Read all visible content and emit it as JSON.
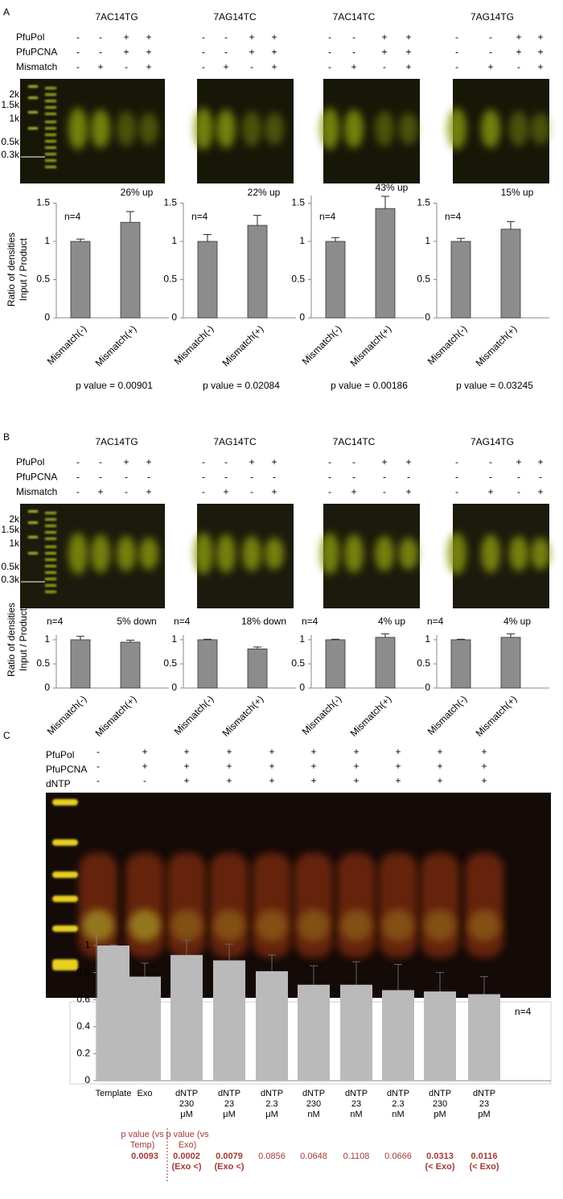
{
  "panels": [
    {
      "label": "A",
      "gel_titles": [
        "7AC14TG",
        "7AG14TC",
        "7AC14TC",
        "7AG14TG"
      ],
      "row_labels": [
        "PfuPol",
        "PfuPCNA",
        "Mismatch"
      ],
      "lanes": [
        [
          "-",
          "-",
          "+",
          "+"
        ],
        [
          "-",
          "-",
          "+",
          "+"
        ],
        [
          "-",
          "+",
          "-",
          "+"
        ]
      ],
      "ladder_labels": [
        "2k",
        "1.5k",
        "1k",
        "0.5k",
        "0.3k"
      ]
    },
    {
      "label": "B",
      "gel_titles": [
        "7AC14TG",
        "7AG14TC",
        "7AC14TC",
        "7AG14TG"
      ],
      "row_labels": [
        "PfuPol",
        "PfuPCNA",
        "Mismatch"
      ],
      "lanes": [
        [
          "-",
          "-",
          "+",
          "+"
        ],
        [
          "-",
          "-",
          "-",
          "-"
        ],
        [
          "-",
          "+",
          "-",
          "+"
        ]
      ],
      "ladder_labels": [
        "2k",
        "1.5k",
        "1k",
        "0.5k",
        "0.3k"
      ]
    },
    {
      "label": "C",
      "row_labels": [
        "PfuPol",
        "PfuPCNA",
        "dNTP"
      ],
      "lanes": [
        [
          "-",
          "+",
          "+",
          "+",
          "+",
          "+",
          "+",
          "+",
          "+",
          "+"
        ],
        [
          "-",
          "+",
          "+",
          "+",
          "+",
          "+",
          "+",
          "+",
          "+",
          "+"
        ],
        [
          "-",
          "-",
          "+",
          "+",
          "+",
          "+",
          "+",
          "+",
          "+",
          "+"
        ]
      ]
    }
  ],
  "chart_data": [
    {
      "type": "bar",
      "y_label": "Ratio of densities",
      "y_label_sub": "Input / Product",
      "categories": [
        "Mismatch(-)",
        "Mismatch(+)"
      ],
      "values": [
        1.0,
        1.25
      ],
      "errors": [
        0.03,
        0.14
      ],
      "color": "#8c8c8c",
      "ylim": [
        0,
        1.5
      ],
      "yticks": [
        0,
        0.5,
        1,
        1.5
      ],
      "n_label": "n=4",
      "change_label": "26% up",
      "p_value": "p value = 0.00901"
    },
    {
      "type": "bar",
      "categories": [
        "Mismatch(-)",
        "Mismatch(+)"
      ],
      "values": [
        1.0,
        1.21
      ],
      "errors": [
        0.09,
        0.13
      ],
      "color": "#8c8c8c",
      "ylim": [
        0,
        1.5
      ],
      "yticks": [
        0,
        0.5,
        1,
        1.5
      ],
      "n_label": "n=4",
      "change_label": "22% up",
      "p_value": "p value = 0.02084"
    },
    {
      "type": "bar",
      "categories": [
        "Mismatch(-)",
        "Mismatch(+)"
      ],
      "values": [
        1.0,
        1.43
      ],
      "errors": [
        0.05,
        0.16
      ],
      "color": "#8c8c8c",
      "ylim": [
        0,
        1.6
      ],
      "yticks": [
        0,
        0.5,
        1,
        1.5
      ],
      "n_label": "n=4",
      "change_label": "43% up",
      "p_value": "p value = 0.00186"
    },
    {
      "type": "bar",
      "categories": [
        "Mismatch(-)",
        "Mismatch(+)"
      ],
      "values": [
        1.0,
        1.16
      ],
      "errors": [
        0.04,
        0.1
      ],
      "color": "#8c8c8c",
      "ylim": [
        0,
        1.5
      ],
      "yticks": [
        0,
        0.5,
        1,
        1.5
      ],
      "n_label": "n=4",
      "change_label": "15% up",
      "p_value": "p value = 0.03245"
    },
    {
      "type": "bar",
      "y_label": "Ratio of densities",
      "y_label_sub": "Input / Product",
      "categories": [
        "Mismatch(-)",
        "Mismatch(+)"
      ],
      "values": [
        1.0,
        0.95
      ],
      "errors": [
        0.07,
        0.04
      ],
      "color": "#8c8c8c",
      "ylim": [
        0,
        1.1
      ],
      "yticks": [
        0,
        0.5,
        1
      ],
      "n_label": "n=4",
      "change_label": "5% down"
    },
    {
      "type": "bar",
      "categories": [
        "Mismatch(-)",
        "Mismatch(+)"
      ],
      "values": [
        1.0,
        0.81
      ],
      "errors": [
        0.01,
        0.04
      ],
      "color": "#8c8c8c",
      "ylim": [
        0,
        1.1
      ],
      "yticks": [
        0,
        0.5,
        1
      ],
      "n_label": "n=4",
      "change_label": "18% down"
    },
    {
      "type": "bar",
      "categories": [
        "Mismatch(-)",
        "Mismatch(+)"
      ],
      "values": [
        1.0,
        1.05
      ],
      "errors": [
        0.01,
        0.07
      ],
      "color": "#8c8c8c",
      "ylim": [
        0,
        1.1
      ],
      "yticks": [
        0,
        0.5,
        1
      ],
      "n_label": "n=4",
      "change_label": "4% up"
    },
    {
      "type": "bar",
      "categories": [
        "Mismatch(-)",
        "Mismatch(+)"
      ],
      "values": [
        1.0,
        1.05
      ],
      "errors": [
        0.01,
        0.07
      ],
      "color": "#8c8c8c",
      "ylim": [
        0,
        1.1
      ],
      "yticks": [
        0,
        0.5,
        1
      ],
      "n_label": "n=4",
      "change_label": "4% up"
    },
    {
      "type": "bar",
      "categories": [
        "Template",
        "Exo",
        "dNTP 230 μM",
        "dNTP 23 μM",
        "dNTP 2.3 μM",
        "dNTP 230 nM",
        "dNTP 23 nM",
        "dNTP 2.3 nM",
        "dNTP 230 pM",
        "dNTP 23 pM"
      ],
      "values": [
        1.0,
        0.77,
        0.93,
        0.89,
        0.81,
        0.71,
        0.71,
        0.67,
        0.66,
        0.64
      ],
      "errors": [
        0.005,
        0.1,
        0.11,
        0.12,
        0.12,
        0.14,
        0.17,
        0.19,
        0.14,
        0.13
      ],
      "color": "#bababa",
      "ylim": [
        0,
        1.08
      ],
      "yticks": [
        0,
        0.2,
        0.4,
        0.6,
        0.8,
        1
      ],
      "n_label": "n=4",
      "p_value_headers": [
        "p value (vs Temp)",
        "p value (vs Exo)"
      ],
      "p_values": [
        null,
        {
          "value": "0.0093",
          "bold": true
        },
        {
          "value": "0.0002",
          "note": "(Exo <)",
          "bold": true
        },
        {
          "value": "0.0079",
          "note": "(Exo <)",
          "bold": true
        },
        {
          "value": "0.0856"
        },
        {
          "value": "0.0648"
        },
        {
          "value": "0.1108"
        },
        {
          "value": "0.0666"
        },
        {
          "value": "0.0313",
          "note": "(< Exo)",
          "bold": true
        },
        {
          "value": "0.0116",
          "note": "(< Exo)",
          "bold": true
        }
      ]
    }
  ]
}
